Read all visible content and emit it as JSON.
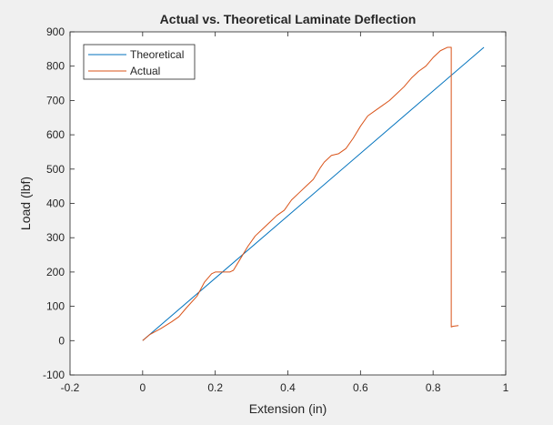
{
  "chart_data": {
    "type": "line",
    "title": "Actual vs. Theoretical Laminate Deflection",
    "xlabel": "Extension (in)",
    "ylabel": "Load (lbf)",
    "xlim": [
      -0.2,
      1
    ],
    "ylim": [
      -100,
      900
    ],
    "xticks": [
      -0.2,
      0,
      0.2,
      0.4,
      0.6,
      0.8,
      1
    ],
    "yticks": [
      -100,
      0,
      100,
      200,
      300,
      400,
      500,
      600,
      700,
      800,
      900
    ],
    "xtick_labels": [
      "-0.2",
      "0",
      "0.2",
      "0.4",
      "0.6",
      "0.8",
      "1"
    ],
    "ytick_labels": [
      "-100",
      "0",
      "100",
      "200",
      "300",
      "400",
      "500",
      "600",
      "700",
      "800",
      "900"
    ],
    "grid": false,
    "legend_position": "top-left",
    "series": [
      {
        "name": "Theoretical",
        "color": "#0072BD",
        "x": [
          0,
          0.94
        ],
        "y": [
          0,
          855
        ]
      },
      {
        "name": "Actual",
        "color": "#D95319",
        "x": [
          0,
          0.02,
          0.05,
          0.08,
          0.1,
          0.12,
          0.15,
          0.17,
          0.19,
          0.2,
          0.22,
          0.24,
          0.25,
          0.27,
          0.29,
          0.31,
          0.33,
          0.35,
          0.37,
          0.39,
          0.41,
          0.43,
          0.45,
          0.47,
          0.49,
          0.5,
          0.52,
          0.54,
          0.56,
          0.58,
          0.6,
          0.62,
          0.64,
          0.66,
          0.68,
          0.7,
          0.72,
          0.74,
          0.76,
          0.78,
          0.8,
          0.82,
          0.84,
          0.85,
          0.85,
          0.855,
          0.87
        ],
        "y": [
          0,
          18,
          35,
          55,
          70,
          95,
          130,
          170,
          195,
          200,
          200,
          200,
          205,
          240,
          275,
          305,
          325,
          345,
          365,
          380,
          410,
          430,
          450,
          470,
          505,
          520,
          540,
          545,
          560,
          590,
          625,
          655,
          670,
          685,
          700,
          720,
          740,
          765,
          785,
          800,
          825,
          845,
          855,
          855,
          40,
          42,
          44
        ]
      }
    ]
  }
}
